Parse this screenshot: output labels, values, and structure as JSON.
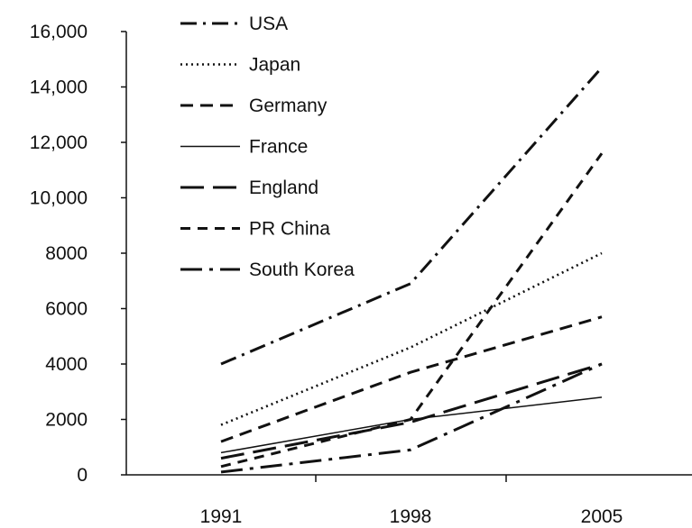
{
  "chart_data": {
    "type": "line",
    "x": [
      "1991",
      "1998",
      "2005"
    ],
    "ylim": [
      0,
      16000
    ],
    "yticks": [
      "0",
      "2000",
      "4000",
      "6000",
      "8000",
      "10,000",
      "12,000",
      "14,000",
      "16,000"
    ],
    "grid": false,
    "legend_position": "top-left",
    "series": [
      {
        "name": "USA",
        "values": [
          4000,
          6900,
          14700
        ],
        "dash": "dash-dot"
      },
      {
        "name": "Japan",
        "values": [
          1800,
          4600,
          8000
        ],
        "dash": "dotted"
      },
      {
        "name": "Germany",
        "values": [
          1200,
          3700,
          5700
        ],
        "dash": "dashed"
      },
      {
        "name": "France",
        "values": [
          800,
          2000,
          2800
        ],
        "dash": "solid"
      },
      {
        "name": "England",
        "values": [
          600,
          1900,
          4000
        ],
        "dash": "long-dash"
      },
      {
        "name": "PR China",
        "values": [
          300,
          2000,
          11600
        ],
        "dash": "short-dash"
      },
      {
        "name": "South Korea",
        "values": [
          100,
          900,
          4000
        ],
        "dash": "dash-dot-long"
      }
    ]
  }
}
